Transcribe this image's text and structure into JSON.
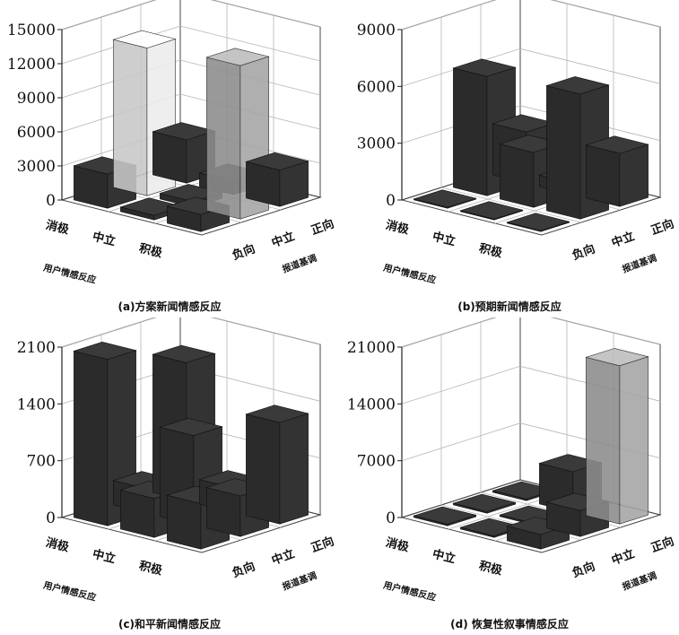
{
  "colors": {
    "dark": "#2b2b2b",
    "light": "#c8c8c8",
    "mid": "#8c8c8c",
    "grid": "#b5b5b5"
  },
  "chart_data": [
    {
      "type": "bar3d",
      "title": "(a)方案新闻情感反应",
      "xlabel": "用户情感反应",
      "ylabel": "报道基调",
      "x_categories": [
        "消极",
        "中立",
        "积极"
      ],
      "y_categories": [
        "负向",
        "中立",
        "正向"
      ],
      "zlim": [
        0,
        15000
      ],
      "zticks": [
        "0",
        "3000",
        "6000",
        "9000",
        "12000",
        "15000"
      ],
      "values": [
        [
          3000,
          13000,
          3800
        ],
        [
          400,
          500,
          1200
        ],
        [
          1500,
          13500,
          3200
        ]
      ],
      "styles": [
        [
          "dark",
          "light",
          "dark"
        ],
        [
          "dark",
          "dark",
          "dark"
        ],
        [
          "dark",
          "mid",
          "dark"
        ]
      ]
    },
    {
      "type": "bar3d",
      "title": "(b)预期新闻情感反应",
      "xlabel": "用户情感反应",
      "ylabel": "报道基调",
      "x_categories": [
        "消极",
        "中立",
        "积极"
      ],
      "y_categories": [
        "负向",
        "中立",
        "正向"
      ],
      "zlim": [
        0,
        9000
      ],
      "zticks": [
        "0",
        "3000",
        "6000",
        "9000"
      ],
      "values": [
        [
          50,
          6300,
          2700
        ],
        [
          50,
          2900,
          600
        ],
        [
          50,
          6600,
          2800
        ]
      ],
      "styles": [
        [
          "dark",
          "dark",
          "dark"
        ],
        [
          "dark",
          "dark",
          "dark"
        ],
        [
          "dark",
          "dark",
          "dark"
        ]
      ]
    },
    {
      "type": "bar3d",
      "title": "(c)和平新闻情感反应",
      "xlabel": "用户情感反应",
      "ylabel": "报道基调",
      "x_categories": [
        "消极",
        "中立",
        "积极"
      ],
      "y_categories": [
        "负向",
        "中立",
        "正向"
      ],
      "zlim": [
        0,
        2100
      ],
      "zticks": [
        "0",
        "700",
        "1400",
        "2100"
      ],
      "values": [
        [
          2050,
          300,
          1700
        ],
        [
          480,
          1100,
          300
        ],
        [
          560,
          500,
          1250
        ]
      ],
      "styles": [
        [
          "dark",
          "dark",
          "dark"
        ],
        [
          "dark",
          "dark",
          "dark"
        ],
        [
          "dark",
          "dark",
          "dark"
        ]
      ]
    },
    {
      "type": "bar3d",
      "title": "(d) 恢复性叙事情感反应",
      "xlabel": "用户情感反应",
      "ylabel": "报道基调",
      "x_categories": [
        "消极",
        "中立",
        "积极"
      ],
      "y_categories": [
        "负向",
        "中立",
        "正向"
      ],
      "zlim": [
        0,
        21000
      ],
      "zticks": [
        "0",
        "7000",
        "14000",
        "21000"
      ],
      "values": [
        [
          200,
          200,
          200
        ],
        [
          200,
          200,
          5000
        ],
        [
          1800,
          3200,
          19500
        ]
      ],
      "styles": [
        [
          "dark",
          "dark",
          "dark"
        ],
        [
          "dark",
          "dark",
          "dark"
        ],
        [
          "dark",
          "dark",
          "mid"
        ]
      ]
    }
  ]
}
